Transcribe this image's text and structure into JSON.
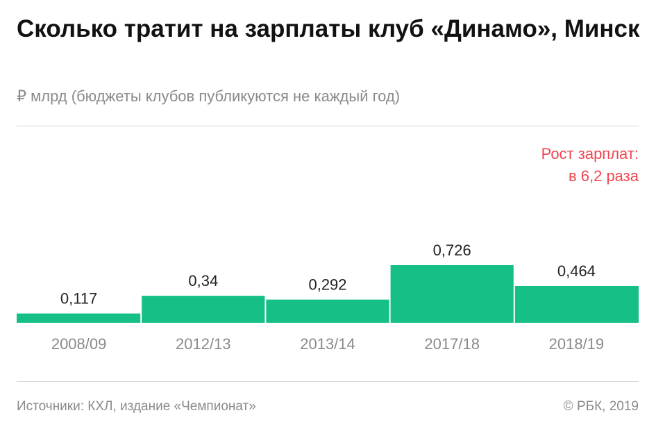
{
  "header": {
    "title": "Сколько тратит на зарплаты клуб «Динамо», Минск",
    "subtitle": "₽ млрд (бюджеты клубов публикуются не каждый год)"
  },
  "annotation": {
    "line1": "Рост зарплат:",
    "line2": "в 6,2 раза",
    "color": "#f0444f"
  },
  "footer": {
    "source": "Источники: КХЛ, издание «Чемпионат»",
    "copyright": "© РБК, 2019"
  },
  "colors": {
    "bar": "#16bf85",
    "value_label": "#222222",
    "tick_label": "#8a8a8a"
  },
  "chart_data": {
    "type": "bar",
    "categories": [
      "2008/09",
      "2012/13",
      "2013/14",
      "2017/18",
      "2018/19"
    ],
    "values": [
      0.117,
      0.34,
      0.292,
      0.726,
      0.464
    ],
    "value_labels": [
      "0,117",
      "0,34",
      "0,292",
      "0,726",
      "0,464"
    ],
    "title": "Сколько тратит на зарплаты клуб «Динамо», Минск",
    "subtitle": "₽ млрд (бюджеты клубов публикуются не каждый год)",
    "ylim": [
      0,
      0.726
    ],
    "grid": false,
    "legend": "none"
  }
}
